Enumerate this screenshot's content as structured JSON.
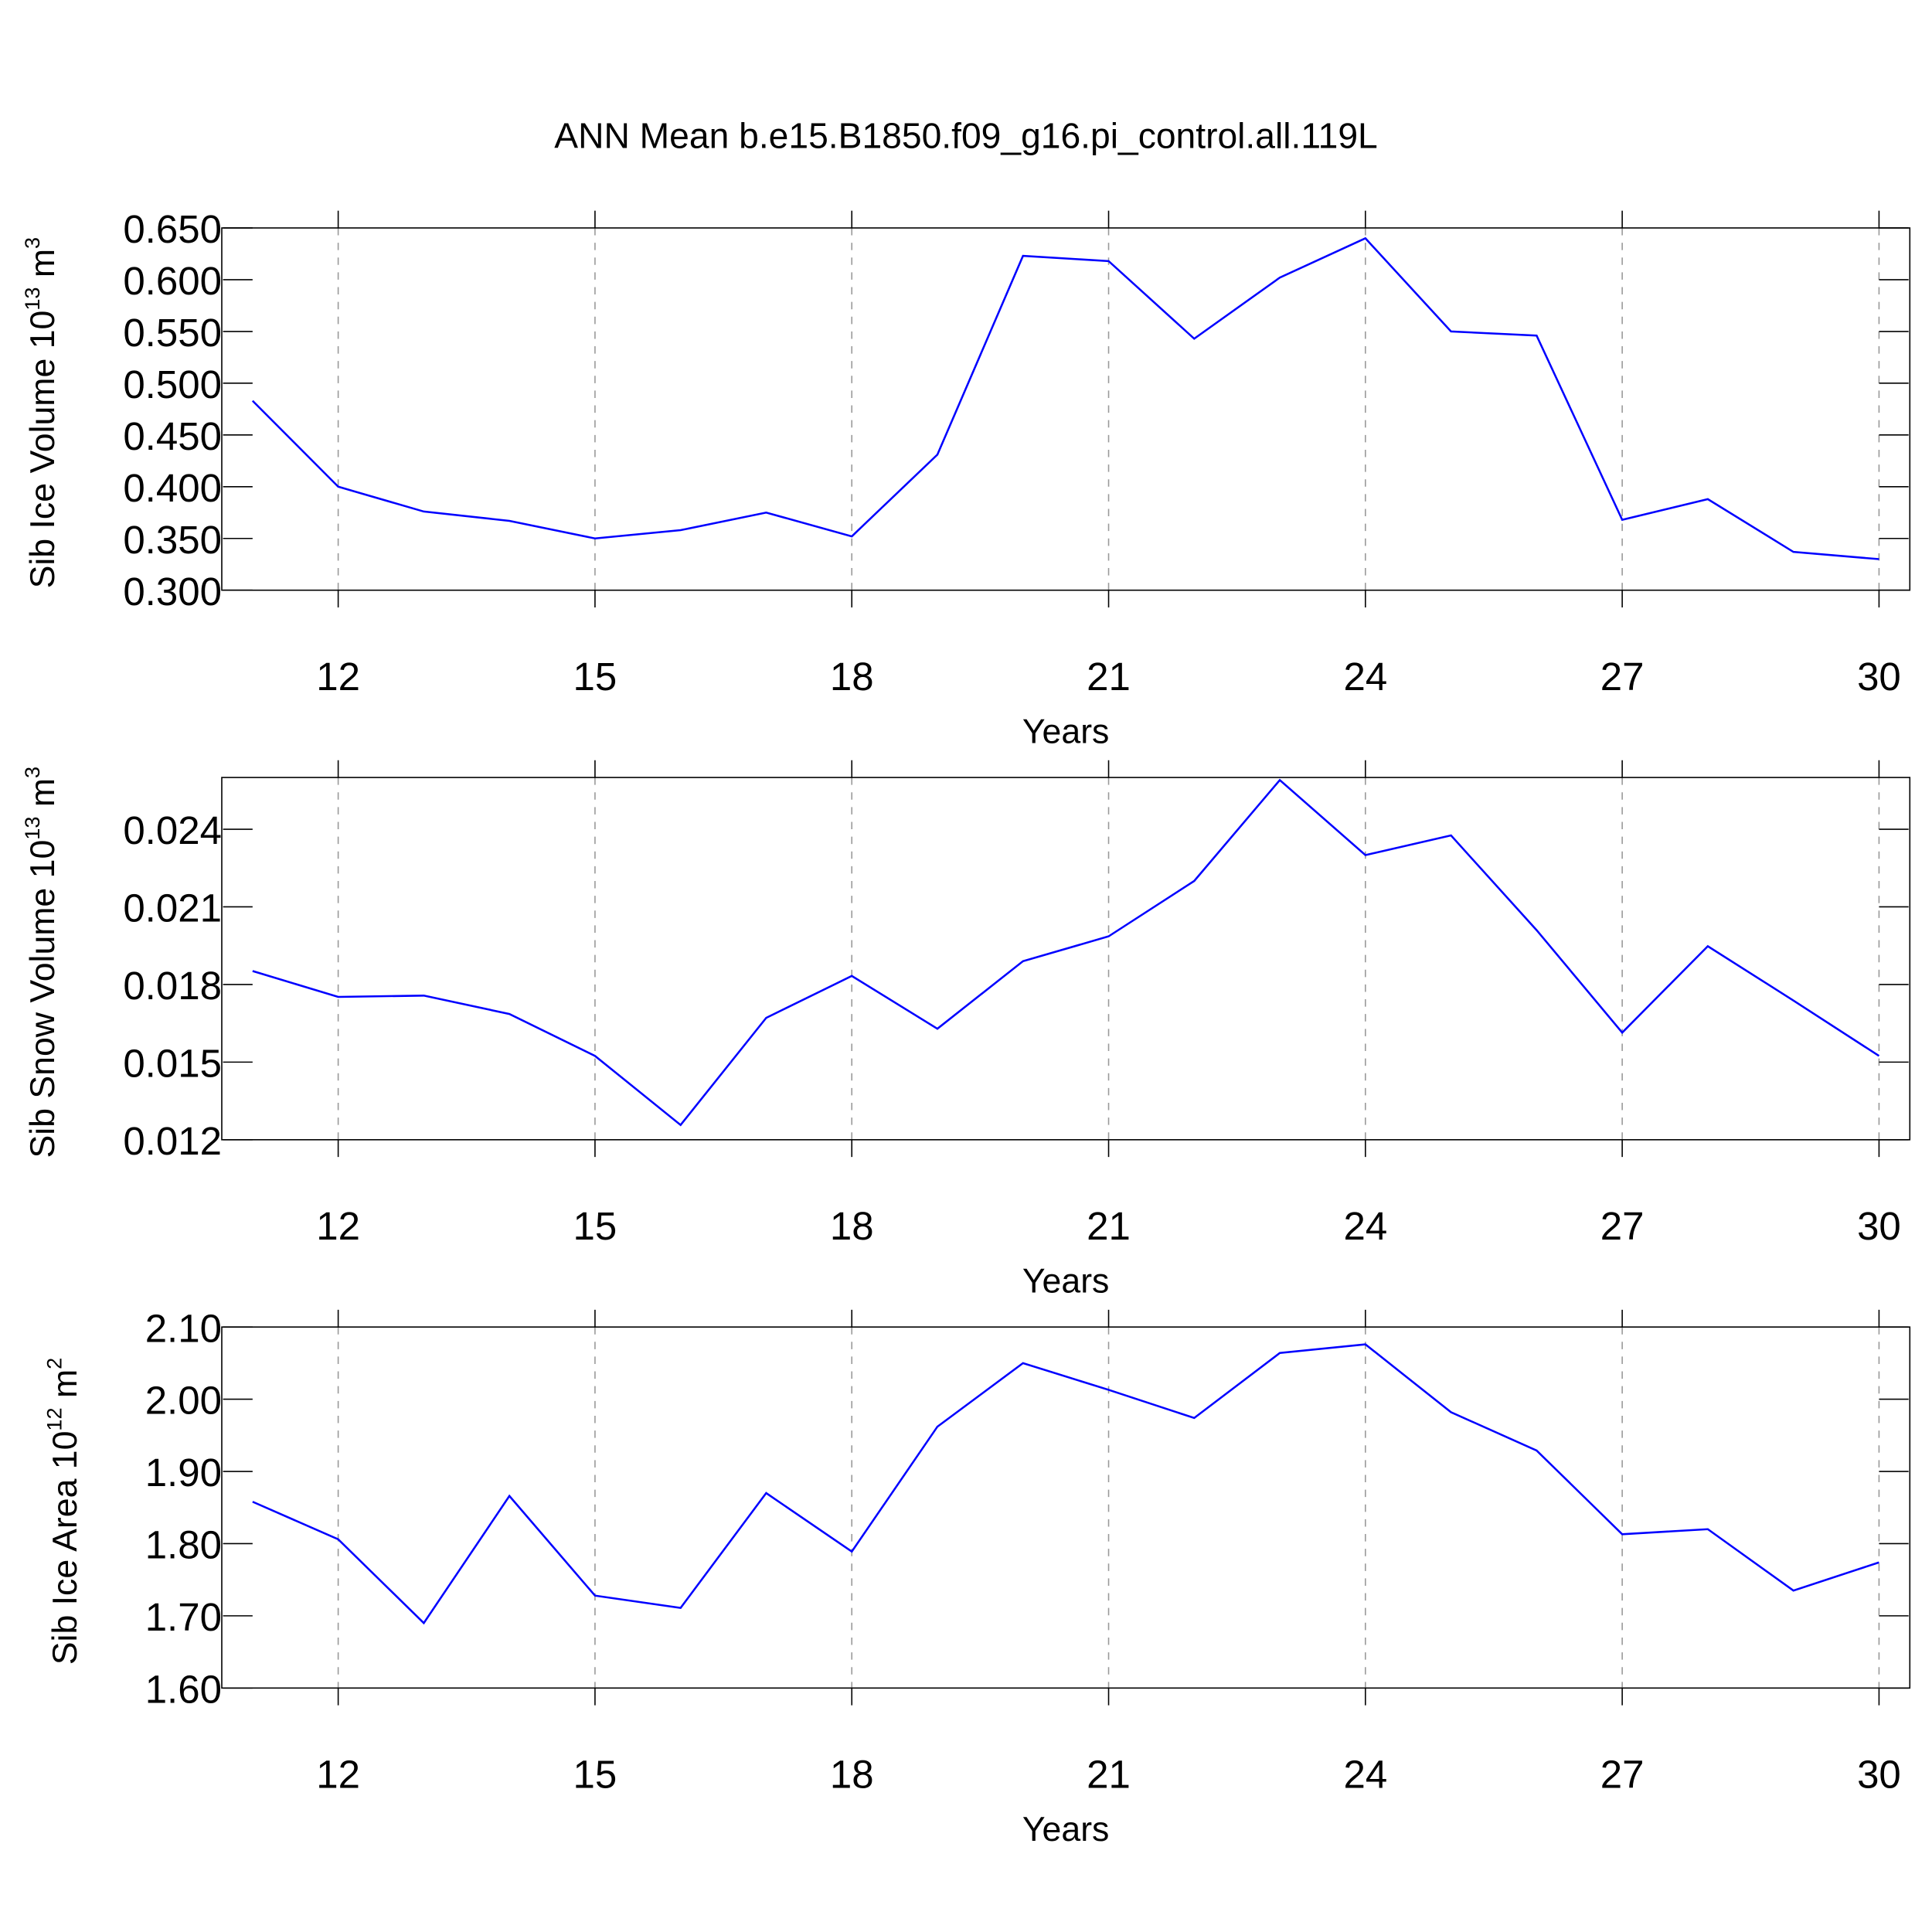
{
  "title": "ANN Mean b.e15.B1850.f09_g16.pi_control.all.119L",
  "chart_data": [
    {
      "type": "line",
      "xlabel": "Years",
      "ylabel": {
        "text": "Sib Ice Volume 10",
        "exp": "13",
        "unit": " m",
        "unit_exp": "3"
      },
      "x": [
        11,
        12,
        13,
        14,
        15,
        16,
        17,
        18,
        19,
        20,
        21,
        22,
        23,
        24,
        25,
        26,
        27,
        28,
        29,
        30
      ],
      "values": [
        0.483,
        0.4,
        0.376,
        0.367,
        0.35,
        0.358,
        0.375,
        0.352,
        0.431,
        0.623,
        0.618,
        0.543,
        0.602,
        0.64,
        0.55,
        0.546,
        0.368,
        0.388,
        0.337,
        0.33
      ],
      "color": "#0000ff",
      "xlim": [
        11,
        30
      ],
      "xticks": [
        12,
        15,
        18,
        21,
        24,
        27,
        30
      ],
      "ylim": [
        0.3,
        0.65
      ],
      "yticks": [
        {
          "value": 0.3,
          "label": "0.300"
        },
        {
          "value": 0.35,
          "label": "0.350"
        },
        {
          "value": 0.4,
          "label": "0.400"
        },
        {
          "value": 0.45,
          "label": "0.450"
        },
        {
          "value": 0.5,
          "label": "0.500"
        },
        {
          "value": 0.55,
          "label": "0.550"
        },
        {
          "value": 0.6,
          "label": "0.600"
        },
        {
          "value": 0.65,
          "label": "0.650"
        }
      ],
      "xgrid": true
    },
    {
      "type": "line",
      "xlabel": "Years",
      "ylabel": {
        "text": "Sib Snow Volume 10",
        "exp": "13",
        "unit": " m",
        "unit_exp": "3"
      },
      "x": [
        11,
        12,
        13,
        14,
        15,
        16,
        17,
        18,
        19,
        20,
        21,
        22,
        23,
        24,
        25,
        26,
        27,
        28,
        29,
        30
      ],
      "values": [
        0.01852,
        0.01752,
        0.01757,
        0.01686,
        0.01524,
        0.01257,
        0.01671,
        0.01833,
        0.01629,
        0.0189,
        0.01986,
        0.022,
        0.0259,
        0.023,
        0.02376,
        0.0201,
        0.01614,
        0.01948,
        0.01738,
        0.01524
      ],
      "color": "#0000ff",
      "xlim": [
        11,
        30
      ],
      "xticks": [
        12,
        15,
        18,
        21,
        24,
        27,
        30
      ],
      "ylim": [
        0.012,
        0.026
      ],
      "yticks": [
        0.012,
        0.015,
        0.018,
        0.021,
        0.024
      ],
      "xgrid": true
    },
    {
      "type": "line",
      "xlabel": "Years",
      "ylabel": {
        "text": "Sib Ice Area 10",
        "exp": "12",
        "unit": " m",
        "unit_exp": "2"
      },
      "x": [
        11,
        12,
        13,
        14,
        15,
        16,
        17,
        18,
        19,
        20,
        21,
        22,
        23,
        24,
        25,
        26,
        27,
        28,
        29,
        30
      ],
      "values": [
        1.858,
        1.806,
        1.69,
        1.866,
        1.728,
        1.711,
        1.87,
        1.789,
        1.962,
        2.05,
        2.013,
        1.974,
        2.064,
        2.076,
        1.982,
        1.929,
        1.813,
        1.82,
        1.735,
        1.774
      ],
      "color": "#0000ff",
      "xlim": [
        11,
        30
      ],
      "xticks": [
        12,
        15,
        18,
        21,
        24,
        27,
        30
      ],
      "ylim": [
        1.6,
        2.1
      ],
      "yticks": [
        {
          "value": 1.6,
          "label": "1.60"
        },
        {
          "value": 1.7,
          "label": "1.70"
        },
        {
          "value": 1.8,
          "label": "1.80"
        },
        {
          "value": 1.9,
          "label": "1.90"
        },
        {
          "value": 2.0,
          "label": "2.00"
        },
        {
          "value": 2.1,
          "label": "2.10"
        }
      ],
      "xgrid": true
    }
  ]
}
